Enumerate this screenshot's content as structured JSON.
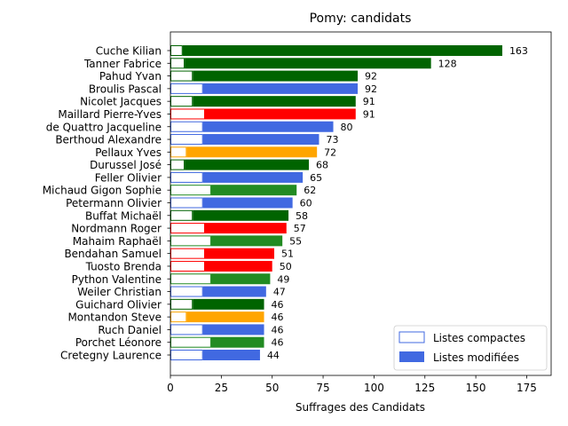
{
  "chart_data": {
    "type": "bar",
    "orientation": "horizontal",
    "stacked": true,
    "title": "Pomy: candidats",
    "xlabel": "Suffrages des Candidats",
    "ylabel": "",
    "xlim": [
      0,
      187
    ],
    "xticks": [
      0,
      25,
      50,
      75,
      100,
      125,
      150,
      175
    ],
    "grid": false,
    "legend_position": "bottom-right",
    "party_colors": {
      "PLR": "#4169e1",
      "UDC": "#006400",
      "PS": "#ff0000",
      "Verts": "#228b22",
      "Centre": "#ffa500"
    },
    "candidates": [
      {
        "name": "Cuche Kilian",
        "party": "UDC",
        "compactes": 6,
        "total": 163
      },
      {
        "name": "Tanner Fabrice",
        "party": "UDC",
        "compactes": 7,
        "total": 128
      },
      {
        "name": "Pahud Yvan",
        "party": "UDC",
        "compactes": 11,
        "total": 92
      },
      {
        "name": "Broulis Pascal",
        "party": "PLR",
        "compactes": 16,
        "total": 92
      },
      {
        "name": "Nicolet Jacques",
        "party": "UDC",
        "compactes": 11,
        "total": 91
      },
      {
        "name": "Maillard Pierre-Yves",
        "party": "PS",
        "compactes": 17,
        "total": 91
      },
      {
        "name": "de Quattro Jacqueline",
        "party": "PLR",
        "compactes": 16,
        "total": 80
      },
      {
        "name": "Berthoud Alexandre",
        "party": "PLR",
        "compactes": 16,
        "total": 73
      },
      {
        "name": "Pellaux Yves",
        "party": "Centre",
        "compactes": 8,
        "total": 72
      },
      {
        "name": "Durussel José",
        "party": "UDC",
        "compactes": 7,
        "total": 68
      },
      {
        "name": "Feller Olivier",
        "party": "PLR",
        "compactes": 16,
        "total": 65
      },
      {
        "name": "Michaud Gigon Sophie",
        "party": "Verts",
        "compactes": 20,
        "total": 62
      },
      {
        "name": "Petermann Olivier",
        "party": "PLR",
        "compactes": 16,
        "total": 60
      },
      {
        "name": "Buffat Michaël",
        "party": "UDC",
        "compactes": 11,
        "total": 58
      },
      {
        "name": "Nordmann Roger",
        "party": "PS",
        "compactes": 17,
        "total": 57
      },
      {
        "name": "Mahaim Raphaël",
        "party": "Verts",
        "compactes": 20,
        "total": 55
      },
      {
        "name": "Bendahan Samuel",
        "party": "PS",
        "compactes": 17,
        "total": 51
      },
      {
        "name": "Tuosto Brenda",
        "party": "PS",
        "compactes": 17,
        "total": 50
      },
      {
        "name": "Python Valentine",
        "party": "Verts",
        "compactes": 20,
        "total": 49
      },
      {
        "name": "Weiler Christian",
        "party": "PLR",
        "compactes": 16,
        "total": 47
      },
      {
        "name": "Guichard Olivier",
        "party": "UDC",
        "compactes": 11,
        "total": 46
      },
      {
        "name": "Montandon Steve",
        "party": "Centre",
        "compactes": 8,
        "total": 46
      },
      {
        "name": "Ruch Daniel",
        "party": "PLR",
        "compactes": 16,
        "total": 46
      },
      {
        "name": "Porchet Léonore",
        "party": "Verts",
        "compactes": 20,
        "total": 46
      },
      {
        "name": "Cretegny Laurence",
        "party": "PLR",
        "compactes": 16,
        "total": 44
      }
    ],
    "legend": [
      {
        "key": "compactes",
        "label": "Listes compactes",
        "style": "outline"
      },
      {
        "key": "modifiees",
        "label": "Listes modifiées",
        "style": "filled"
      }
    ]
  }
}
